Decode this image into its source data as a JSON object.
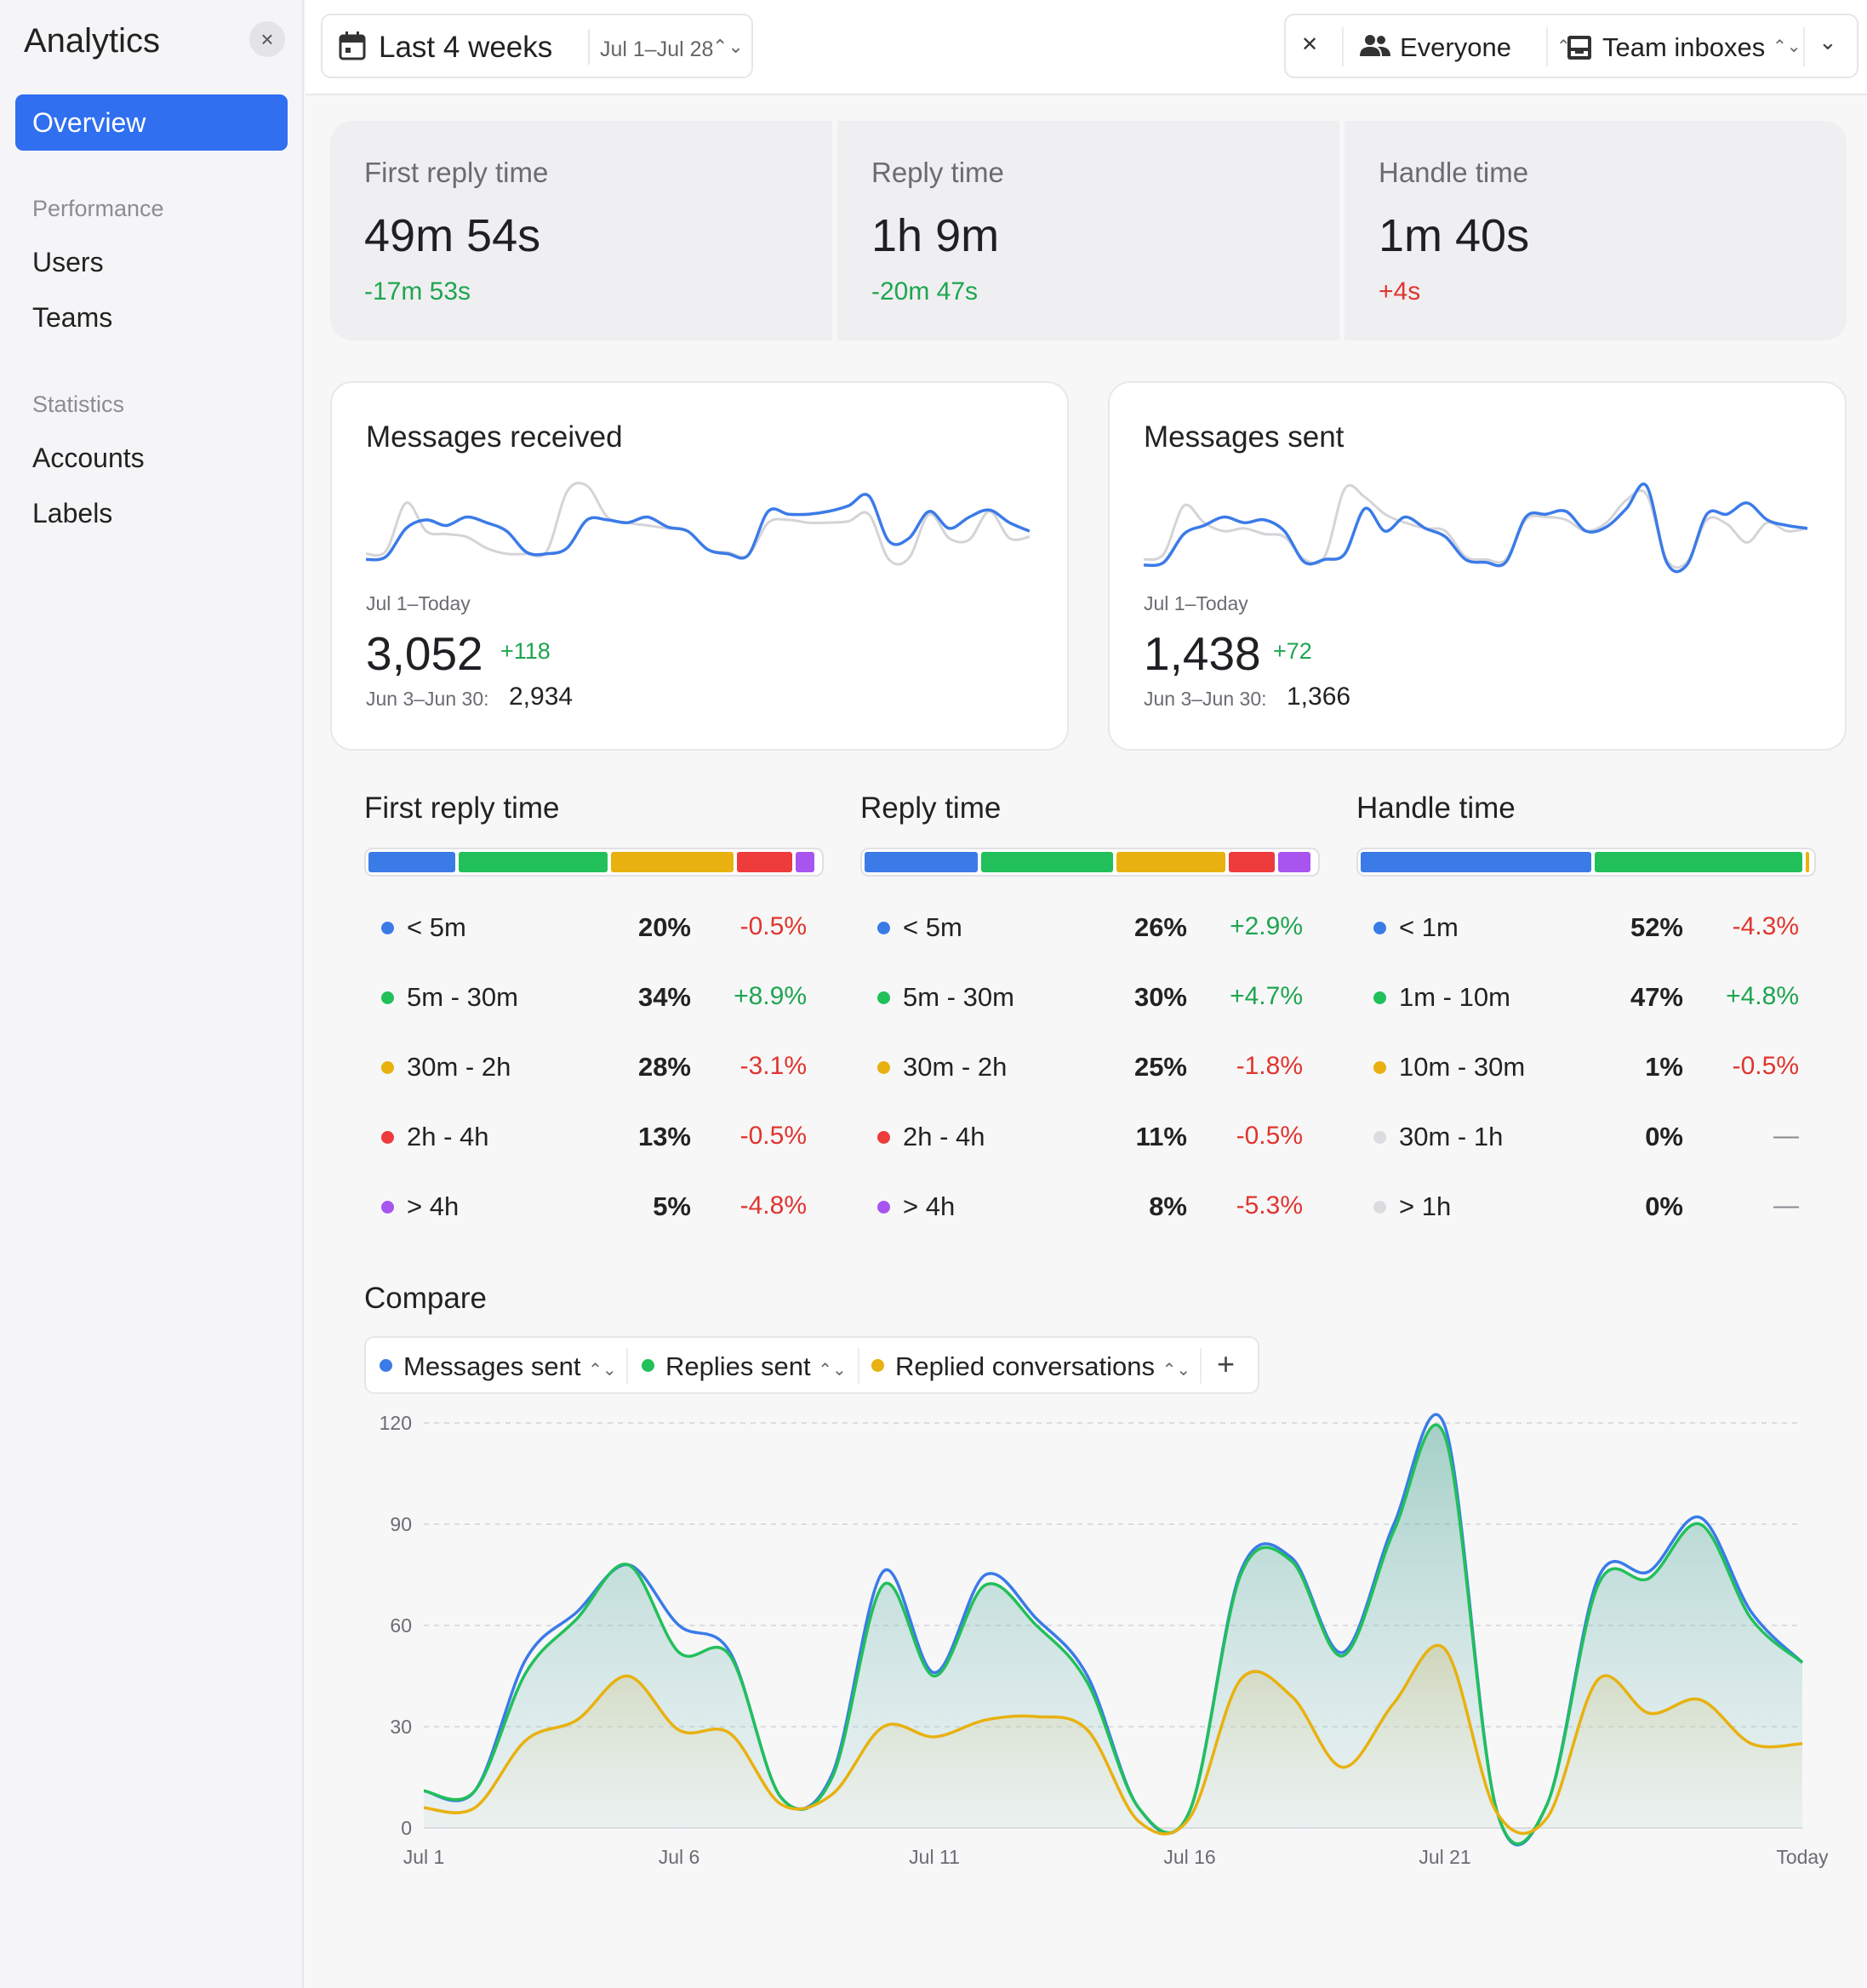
{
  "sidebar": {
    "title": "Analytics",
    "close_icon": "×",
    "active_item": "Overview",
    "sections": [
      {
        "label": "Performance",
        "items": [
          "Users",
          "Teams"
        ]
      },
      {
        "label": "Statistics",
        "items": [
          "Accounts",
          "Labels"
        ]
      }
    ]
  },
  "toolbar": {
    "date_label": "Last 4 weeks",
    "date_range": "Jul 1–Jul 28",
    "updown_icon": "⌃⌄",
    "compare_icon": "✕",
    "people_filter": "Everyone",
    "inbox_filter": "Team inboxes",
    "more_icon": "⌄"
  },
  "kpis": [
    {
      "title": "First reply time",
      "value": "49m 54s",
      "delta": "-17m 53s",
      "trend": "good"
    },
    {
      "title": "Reply time",
      "value": "1h 9m",
      "delta": "-20m 47s",
      "trend": "good"
    },
    {
      "title": "Handle time",
      "value": "1m 40s",
      "delta": "+4s",
      "trend": "bad"
    }
  ],
  "cards": [
    {
      "title": "Messages received",
      "range": "Jul 1–Today",
      "value": "3,052",
      "delta": "+118",
      "prev_label": "Jun 3–Jun 30:",
      "prev_value": "2,934",
      "spark_current": [
        10,
        12,
        32,
        38,
        34,
        40,
        36,
        30,
        15,
        14,
        18,
        38,
        38,
        36,
        40,
        33,
        30,
        17,
        14,
        13,
        44,
        42,
        42,
        44,
        48,
        55,
        23,
        25,
        44,
        32,
        40,
        45,
        36,
        30
      ],
      "spark_previous": [
        14,
        16,
        50,
        30,
        28,
        26,
        18,
        14,
        14,
        16,
        58,
        62,
        40,
        36,
        34,
        32,
        30,
        17,
        15,
        13,
        36,
        38,
        36,
        36,
        37,
        42,
        10,
        11,
        42,
        25,
        24,
        44,
        25,
        26
      ]
    },
    {
      "title": "Messages sent",
      "range": "Jul 1–Today",
      "value": "1,438",
      "delta": "+72",
      "prev_label": "Jun 3–Jun 30:",
      "prev_value": "1,366",
      "spark_current": [
        6,
        8,
        28,
        34,
        40,
        36,
        38,
        30,
        8,
        10,
        14,
        46,
        30,
        40,
        32,
        26,
        10,
        8,
        8,
        40,
        42,
        44,
        30,
        33,
        46,
        62,
        8,
        6,
        42,
        42,
        50,
        38,
        34,
        32
      ],
      "spark_previous": [
        10,
        14,
        48,
        36,
        30,
        32,
        28,
        26,
        10,
        12,
        60,
        54,
        42,
        36,
        32,
        30,
        12,
        10,
        10,
        38,
        40,
        38,
        30,
        36,
        52,
        56,
        10,
        8,
        38,
        35,
        22,
        36,
        30,
        32
      ]
    }
  ],
  "distributions": [
    {
      "title": "First reply time",
      "rows": [
        {
          "label": "< 5m",
          "pct": 20,
          "pct_label": "20%",
          "delta": "-0.5%",
          "trend": "bad",
          "color": "#3b7be8"
        },
        {
          "label": "5m - 30m",
          "pct": 34,
          "pct_label": "34%",
          "delta": "+8.9%",
          "trend": "good",
          "color": "#22c05a"
        },
        {
          "label": "30m - 2h",
          "pct": 28,
          "pct_label": "28%",
          "delta": "-3.1%",
          "trend": "bad",
          "color": "#e8b10f"
        },
        {
          "label": "2h - 4h",
          "pct": 13,
          "pct_label": "13%",
          "delta": "-0.5%",
          "trend": "bad",
          "color": "#ee3b3b"
        },
        {
          "label": "> 4h",
          "pct": 5,
          "pct_label": "5%",
          "delta": "-4.8%",
          "trend": "bad",
          "color": "#a855f0"
        }
      ]
    },
    {
      "title": "Reply time",
      "rows": [
        {
          "label": "< 5m",
          "pct": 26,
          "pct_label": "26%",
          "delta": "+2.9%",
          "trend": "good",
          "color": "#3b7be8"
        },
        {
          "label": "5m - 30m",
          "pct": 30,
          "pct_label": "30%",
          "delta": "+4.7%",
          "trend": "good",
          "color": "#22c05a"
        },
        {
          "label": "30m - 2h",
          "pct": 25,
          "pct_label": "25%",
          "delta": "-1.8%",
          "trend": "bad",
          "color": "#e8b10f"
        },
        {
          "label": "2h - 4h",
          "pct": 11,
          "pct_label": "11%",
          "delta": "-0.5%",
          "trend": "bad",
          "color": "#ee3b3b"
        },
        {
          "label": "> 4h",
          "pct": 8,
          "pct_label": "8%",
          "delta": "-5.3%",
          "trend": "bad",
          "color": "#a855f0"
        }
      ]
    },
    {
      "title": "Handle time",
      "rows": [
        {
          "label": "< 1m",
          "pct": 52,
          "pct_label": "52%",
          "delta": "-4.3%",
          "trend": "bad",
          "color": "#3b7be8"
        },
        {
          "label": "1m - 10m",
          "pct": 47,
          "pct_label": "47%",
          "delta": "+4.8%",
          "trend": "good",
          "color": "#22c05a"
        },
        {
          "label": "10m - 30m",
          "pct": 1,
          "pct_label": "1%",
          "delta": "-0.5%",
          "trend": "bad",
          "color": "#e8b10f"
        },
        {
          "label": "30m - 1h",
          "pct": 0,
          "pct_label": "0%",
          "delta": "—",
          "trend": "neutral",
          "color": "#dcdce0"
        },
        {
          "label": "> 1h",
          "pct": 0,
          "pct_label": "0%",
          "delta": "—",
          "trend": "neutral",
          "color": "#dcdce0"
        }
      ]
    }
  ],
  "compare": {
    "title": "Compare",
    "add_icon": "+",
    "metrics": [
      {
        "label": "Messages sent",
        "color": "#3b7be8"
      },
      {
        "label": "Replies sent",
        "color": "#22c05a"
      },
      {
        "label": "Replied conversations",
        "color": "#e8b10f"
      }
    ]
  },
  "chart_data": {
    "type": "area",
    "x": [
      "Jul 1",
      "Jul 2",
      "Jul 3",
      "Jul 4",
      "Jul 5",
      "Jul 6",
      "Jul 7",
      "Jul 8",
      "Jul 9",
      "Jul 10",
      "Jul 11",
      "Jul 12",
      "Jul 13",
      "Jul 14",
      "Jul 15",
      "Jul 16",
      "Jul 17",
      "Jul 18",
      "Jul 19",
      "Jul 20",
      "Jul 21",
      "Jul 22",
      "Jul 23",
      "Jul 24",
      "Jul 25",
      "Jul 26",
      "Jul 27",
      "Today"
    ],
    "x_tick_labels": [
      "Jul 1",
      "Jul 6",
      "Jul 11",
      "Jul 16",
      "Jul 21",
      "Today"
    ],
    "y_ticks": [
      0,
      30,
      60,
      90,
      120
    ],
    "ylim": [
      0,
      120
    ],
    "series": [
      {
        "name": "Messages sent",
        "color": "#3b7be8",
        "values": [
          11,
          11,
          50,
          64,
          78,
          60,
          52,
          9,
          16,
          76,
          46,
          75,
          62,
          45,
          6,
          5,
          76,
          80,
          52,
          90,
          119,
          6,
          7,
          74,
          76,
          92,
          64,
          49
        ]
      },
      {
        "name": "Replies sent",
        "color": "#22c05a",
        "values": [
          11,
          11,
          46,
          62,
          78,
          52,
          51,
          9,
          15,
          72,
          45,
          72,
          60,
          43,
          6,
          5,
          75,
          79,
          51,
          88,
          116,
          6,
          7,
          72,
          74,
          90,
          62,
          49
        ]
      },
      {
        "name": "Replied conversations",
        "color": "#e8b10f",
        "values": [
          6,
          6,
          26,
          32,
          45,
          29,
          28,
          7,
          10,
          30,
          27,
          32,
          33,
          29,
          2,
          3,
          44,
          39,
          18,
          37,
          53,
          5,
          3,
          44,
          34,
          38,
          25,
          25
        ]
      }
    ],
    "grid": true,
    "legend": "top-left"
  }
}
